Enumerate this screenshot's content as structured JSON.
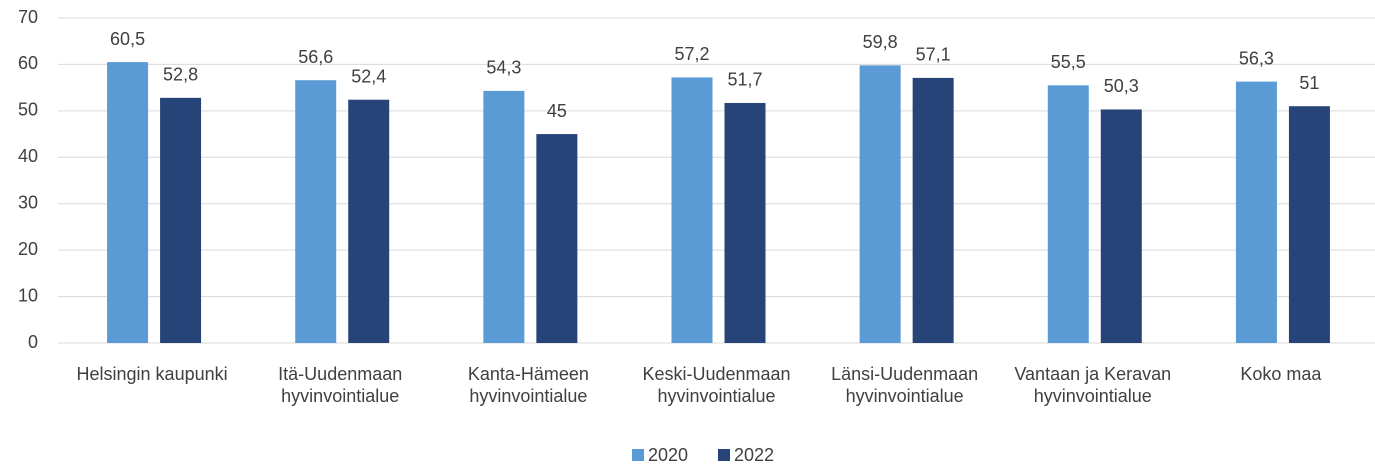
{
  "chart_data": {
    "type": "bar",
    "categories": [
      "Helsingin kaupunki",
      "Itä-Uudenmaan hyvinvointialue",
      "Kanta-Hämeen hyvinvointialue",
      "Keski-Uudenmaan hyvinvointialue",
      "Länsi-Uudenmaan hyvinvointialue",
      "Vantaan ja Keravan hyvinvointialue",
      "Koko maa"
    ],
    "series": [
      {
        "name": "2020",
        "color": "#5b9bd5",
        "values": [
          60.5,
          56.6,
          54.3,
          57.2,
          59.8,
          55.5,
          56.3
        ],
        "value_labels": [
          "60,5",
          "56,6",
          "54,3",
          "57,2",
          "59,8",
          "55,5",
          "56,3"
        ]
      },
      {
        "name": "2022",
        "color": "#264478",
        "values": [
          52.8,
          52.4,
          45,
          51.7,
          57.1,
          50.3,
          51
        ],
        "value_labels": [
          "52,8",
          "52,4",
          "45",
          "51,7",
          "57,1",
          "50,3",
          "51"
        ]
      }
    ],
    "ylim": [
      0,
      70
    ],
    "yticks": [
      0,
      10,
      20,
      30,
      40,
      50,
      60,
      70
    ],
    "grid": true,
    "legend": "bottom"
  }
}
